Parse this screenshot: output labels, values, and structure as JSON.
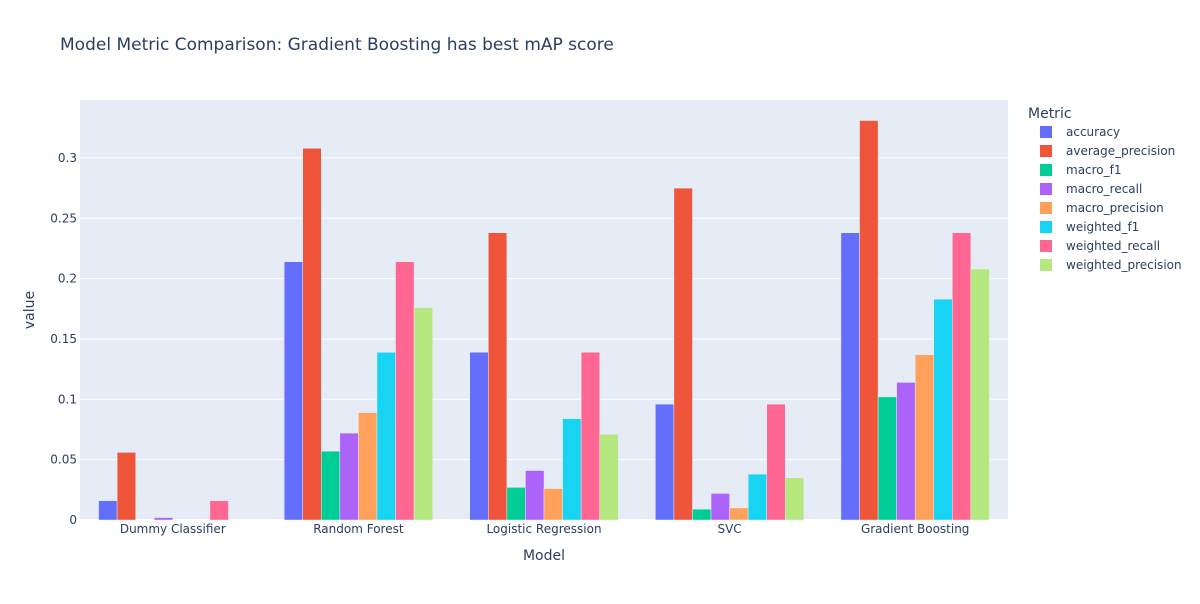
{
  "chart_data": {
    "type": "bar",
    "title": "Model Metric Comparison: Gradient Boosting has best mAP score",
    "xlabel": "Model",
    "ylabel": "value",
    "legend_title": "Metric",
    "legend_position": "right",
    "grid": true,
    "ylim": [
      0,
      0.348
    ],
    "yticks": [
      0,
      0.05,
      0.1,
      0.15,
      0.2,
      0.25,
      0.3
    ],
    "ytick_labels": [
      "0",
      "0.05",
      "0.1",
      "0.15",
      "0.2",
      "0.25",
      "0.3"
    ],
    "categories": [
      "Dummy Classifier",
      "Random Forest",
      "Logistic Regression",
      "SVC",
      "Gradient Boosting"
    ],
    "series": [
      {
        "name": "accuracy",
        "color": "#636efa",
        "values": [
          0.016,
          0.214,
          0.139,
          0.096,
          0.238
        ]
      },
      {
        "name": "average_precision",
        "color": "#ef553b",
        "values": [
          0.056,
          0.308,
          0.238,
          0.275,
          0.331
        ]
      },
      {
        "name": "macro_f1",
        "color": "#00cc96",
        "values": [
          0.0,
          0.057,
          0.027,
          0.009,
          0.102
        ]
      },
      {
        "name": "macro_recall",
        "color": "#ab63fa",
        "values": [
          0.002,
          0.072,
          0.041,
          0.022,
          0.114
        ]
      },
      {
        "name": "macro_precision",
        "color": "#ffa15a",
        "values": [
          0.0,
          0.089,
          0.026,
          0.01,
          0.137
        ]
      },
      {
        "name": "weighted_f1",
        "color": "#19d3f3",
        "values": [
          0.0,
          0.139,
          0.084,
          0.038,
          0.183
        ]
      },
      {
        "name": "weighted_recall",
        "color": "#ff6692",
        "values": [
          0.016,
          0.214,
          0.139,
          0.096,
          0.238
        ]
      },
      {
        "name": "weighted_precision",
        "color": "#b6e880",
        "values": [
          0.0,
          0.176,
          0.071,
          0.035,
          0.208
        ]
      }
    ]
  }
}
